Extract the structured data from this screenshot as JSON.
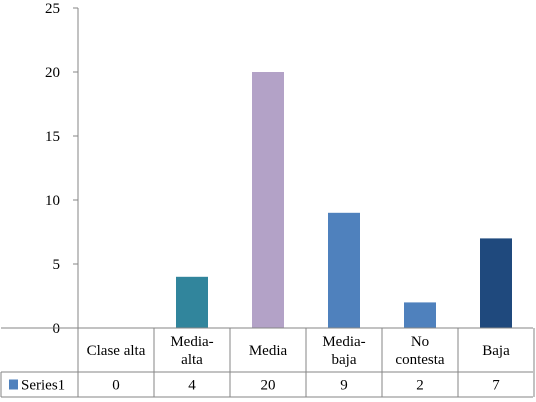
{
  "chart_data": {
    "type": "bar",
    "title": "",
    "xlabel": "",
    "ylabel": "",
    "ylim": [
      0,
      25
    ],
    "yticks": [
      0,
      5,
      10,
      15,
      20,
      25
    ],
    "grid": false,
    "legend": "data-table",
    "categories": [
      [
        "Clase alta"
      ],
      [
        "Media-",
        "alta"
      ],
      [
        "Media"
      ],
      [
        "Media-",
        "baja"
      ],
      [
        "No",
        "contesta"
      ],
      [
        "Baja"
      ]
    ],
    "series": [
      {
        "name": "Series1",
        "values": [
          0,
          4,
          20,
          9,
          2,
          7
        ],
        "value_labels": [
          "0",
          "4",
          "20",
          "9",
          "2",
          "7"
        ],
        "colors": [
          "#4f81bd",
          "#31859c",
          "#b3a2c7",
          "#4f81bd",
          "#4f81bd",
          "#1f497d"
        ],
        "legend_color": "#4f81bd"
      }
    ]
  }
}
